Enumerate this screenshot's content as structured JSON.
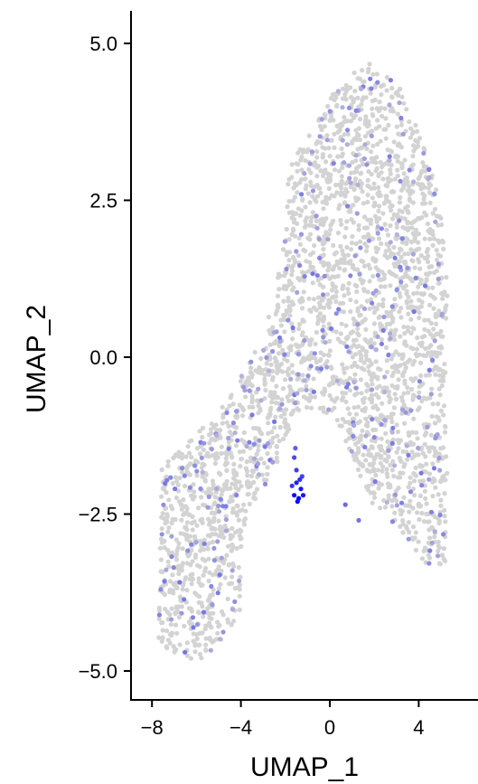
{
  "chart_data": {
    "type": "scatter",
    "title": "",
    "xlabel": "UMAP_1",
    "ylabel": "UMAP_2",
    "xlim": [
      -8.3,
      6.6
    ],
    "ylim": [
      -5.5,
      5.5
    ],
    "x_ticks": [
      -8,
      -4,
      0,
      4
    ],
    "x_tick_labels": [
      "−8",
      "−4",
      "0",
      "4"
    ],
    "y_ticks": [
      5,
      2.5,
      0,
      -2.5,
      -5
    ],
    "y_tick_labels": [
      "5.0",
      "2.5",
      "0.0",
      "−2.5",
      "−5.0"
    ],
    "grid": false,
    "legend": "none",
    "color_low": "#d3d3d3",
    "color_high": "#0000ff",
    "point_radius_note": "small",
    "cloud_shape_top": [
      [
        -7.7,
        -4.6
      ],
      [
        -7.6,
        -1.7
      ],
      [
        -6.2,
        -1.3
      ],
      [
        -5.0,
        -0.8
      ],
      [
        -4.0,
        -0.3
      ],
      [
        -3.0,
        0.3
      ],
      [
        -2.4,
        1.2
      ],
      [
        -2.0,
        2.2
      ],
      [
        -1.8,
        3.2
      ],
      [
        -0.6,
        3.8
      ],
      [
        0.5,
        4.4
      ],
      [
        1.8,
        4.7
      ],
      [
        3.2,
        4.3
      ],
      [
        4.3,
        3.3
      ],
      [
        5.0,
        2.4
      ],
      [
        5.3,
        1.0
      ],
      [
        5.2,
        -0.8
      ],
      [
        5.3,
        -2.0
      ],
      [
        5.2,
        -3.3
      ],
      [
        4.1,
        -3.3
      ],
      [
        3.0,
        -2.7
      ],
      [
        1.8,
        -2.3
      ],
      [
        0.8,
        -1.4
      ],
      [
        0.0,
        -0.9
      ],
      [
        -1.3,
        -0.8
      ],
      [
        -2.0,
        -1.3
      ],
      [
        -2.5,
        -1.8
      ],
      [
        -3.2,
        -2.2
      ],
      [
        -3.8,
        -2.6
      ],
      [
        -4.0,
        -3.1
      ],
      [
        -4.0,
        -4.1
      ],
      [
        -5.5,
        -4.8
      ],
      [
        -6.4,
        -4.8
      ]
    ],
    "highlight_points": [
      {
        "x": -1.5,
        "y": -2.0,
        "expr": 0.85
      },
      {
        "x": -1.3,
        "y": -2.1,
        "expr": 0.9
      },
      {
        "x": -1.6,
        "y": -2.2,
        "expr": 0.95
      },
      {
        "x": -1.4,
        "y": -2.25,
        "expr": 1.0
      },
      {
        "x": -1.2,
        "y": -2.2,
        "expr": 0.9
      },
      {
        "x": -1.5,
        "y": -1.8,
        "expr": 0.7
      },
      {
        "x": -1.6,
        "y": -1.6,
        "expr": 0.65
      },
      {
        "x": -1.35,
        "y": -1.95,
        "expr": 0.8
      },
      {
        "x": -1.7,
        "y": -2.05,
        "expr": 0.75
      },
      {
        "x": -1.45,
        "y": -2.3,
        "expr": 0.95
      },
      {
        "x": -1.25,
        "y": -1.9,
        "expr": 0.7
      },
      {
        "x": -1.55,
        "y": -1.45,
        "expr": 0.55
      },
      {
        "x": 0.7,
        "y": -2.35,
        "expr": 0.5
      },
      {
        "x": 1.3,
        "y": -2.6,
        "expr": 0.45
      }
    ]
  }
}
